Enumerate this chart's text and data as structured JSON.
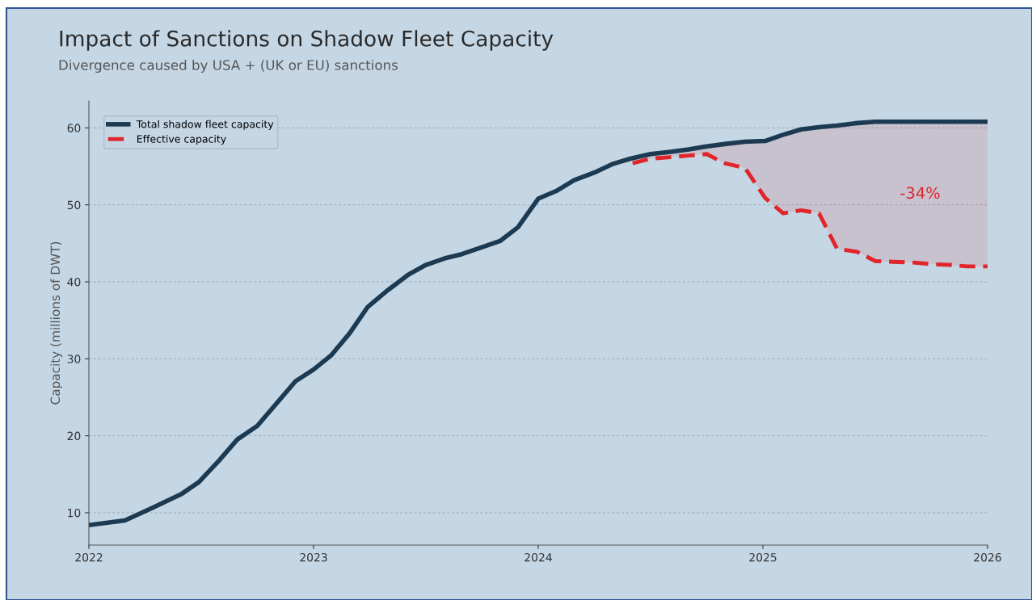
{
  "chart_data": {
    "type": "line",
    "title": "Impact of Sanctions on Shadow Fleet Capacity",
    "subtitle": "Divergence caused by USA + (UK or EU) sanctions",
    "ylabel": "Capacity (millions of DWT)",
    "xlim": [
      2022,
      2026
    ],
    "xticks": [
      2022,
      2023,
      2024,
      2025,
      2026
    ],
    "ylim": [
      5.8,
      63.5
    ],
    "yticks": [
      10,
      20,
      30,
      40,
      50,
      60
    ],
    "grid": "y",
    "legend": "top left",
    "series": [
      {
        "name": "Total shadow fleet capacity",
        "color": "#1c3a52",
        "line_style": "solid",
        "x": [
          2022.0,
          2022.16,
          2022.28,
          2022.41,
          2022.49,
          2022.58,
          2022.66,
          2022.75,
          2022.92,
          2023.0,
          2023.08,
          2023.16,
          2023.24,
          2023.33,
          2023.42,
          2023.5,
          2023.59,
          2023.66,
          2023.75,
          2023.83,
          2023.91,
          2024.0,
          2024.08,
          2024.16,
          2024.25,
          2024.33,
          2024.41,
          2024.5,
          2024.59,
          2024.67,
          2024.75,
          2024.83,
          2024.92,
          2025.01,
          2025.09,
          2025.17,
          2025.25,
          2025.33,
          2025.41,
          2025.5,
          2026.0
        ],
        "values": [
          8.4,
          9.0,
          10.6,
          12.4,
          14.0,
          16.8,
          19.5,
          21.3,
          27.1,
          28.6,
          30.5,
          33.3,
          36.7,
          38.9,
          40.9,
          42.2,
          43.1,
          43.6,
          44.5,
          45.3,
          47.1,
          50.8,
          51.8,
          53.2,
          54.2,
          55.3,
          56.0,
          56.6,
          56.9,
          57.2,
          57.6,
          57.9,
          58.2,
          58.3,
          59.1,
          59.8,
          60.1,
          60.3,
          60.6,
          60.8,
          60.8
        ]
      },
      {
        "name": "Effective capacity",
        "color": "#e0262b",
        "line_style": "dashed",
        "x": [
          2024.42,
          2024.5,
          2024.59,
          2024.67,
          2024.75,
          2024.83,
          2024.92,
          2025.01,
          2025.09,
          2025.17,
          2025.25,
          2025.33,
          2025.42,
          2025.5,
          2025.58,
          2025.67,
          2025.75,
          2025.83,
          2025.91,
          2026.0
        ],
        "values": [
          55.4,
          56.0,
          56.2,
          56.4,
          56.6,
          55.4,
          54.8,
          50.9,
          48.9,
          49.3,
          48.9,
          44.3,
          43.9,
          42.7,
          42.6,
          42.5,
          42.3,
          42.2,
          42.0,
          42.0
        ],
        "lower": [
          55.4,
          56.0,
          56.2,
          56.4,
          56.6,
          55.4,
          54.8,
          50.9,
          48.9,
          49.3,
          48.9,
          44.3,
          43.9,
          42.7,
          42.6,
          42.5,
          42.3,
          42.2,
          42.0,
          42.0
        ],
        "upper": [
          56.0,
          56.6,
          56.9,
          57.2,
          57.6,
          57.9,
          58.2,
          58.3,
          59.1,
          59.8,
          60.1,
          60.3,
          60.6,
          60.8,
          60.8,
          60.8,
          60.8,
          60.8,
          60.8,
          60.8
        ]
      }
    ],
    "annotations": [
      "-34%"
    ]
  }
}
